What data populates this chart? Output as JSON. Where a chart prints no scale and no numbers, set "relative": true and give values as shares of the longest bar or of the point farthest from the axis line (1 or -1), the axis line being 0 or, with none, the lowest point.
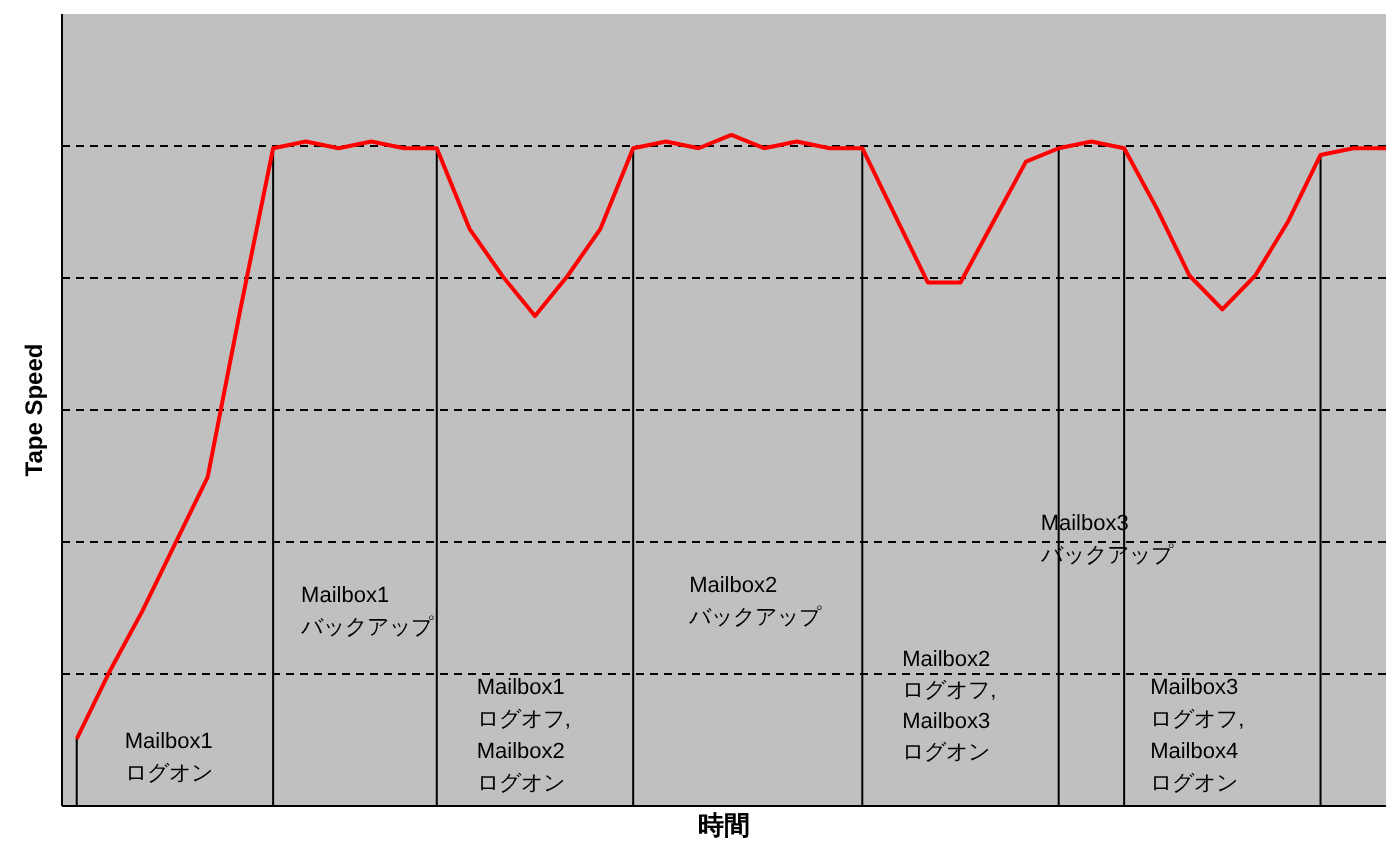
{
  "chart_data": {
    "type": "line",
    "relative": true,
    "xlabel": "時間",
    "ylabel": "Tape Speed",
    "line_style": "solid",
    "grid": true,
    "categories": [
      null,
      null,
      null,
      null,
      null,
      null,
      null,
      null,
      null,
      null,
      null,
      null,
      null,
      null,
      null,
      null,
      null,
      null,
      null,
      null,
      null,
      null,
      null,
      null,
      null,
      null,
      null,
      null,
      null,
      null,
      null,
      null,
      null,
      null,
      null,
      null,
      null,
      null,
      null,
      null,
      null
    ],
    "series": [
      {
        "color": "#ff0000",
        "values": [
          0.1,
          0.2,
          0.29,
          0.39,
          0.49,
          0.74,
          0.98,
          0.99,
          0.98,
          0.99,
          0.98,
          0.98,
          0.86,
          0.79,
          0.73,
          0.79,
          0.86,
          0.98,
          0.99,
          0.98,
          1.0,
          0.98,
          0.99,
          0.98,
          0.98,
          0.88,
          0.78,
          0.78,
          0.87,
          0.96,
          0.98,
          0.99,
          0.98,
          0.89,
          0.79,
          0.74,
          0.79,
          0.87,
          0.97,
          0.98,
          0.98
        ]
      }
    ],
    "annotations": [
      "Mailbox1\nログオン",
      "Mailbox1\nバックアップ",
      "Mailbox1\nログオフ,\nMailbox2\nログオン",
      "Mailbox2\nバックアップ",
      "Mailbox2\nログオフ,\nMailbox3\nログオン",
      "Mailbox3\nバックアップ",
      "Mailbox3\nログオフ,\nMailbox4\nログオン"
    ]
  }
}
